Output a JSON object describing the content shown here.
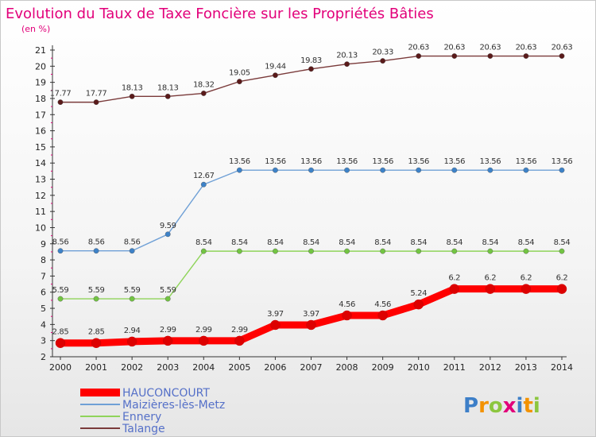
{
  "chart_data": {
    "type": "line",
    "title": "Evolution du Taux de Taxe Foncière sur les Propriétés Bâties",
    "ylabel": "(en %)",
    "xlabel": "",
    "x": [
      2000,
      2001,
      2002,
      2003,
      2004,
      2005,
      2006,
      2007,
      2008,
      2009,
      2010,
      2011,
      2012,
      2013,
      2014
    ],
    "ylim": [
      2,
      21
    ],
    "yticks": [
      2,
      3,
      4,
      5,
      6,
      7,
      8,
      9,
      10,
      11,
      12,
      13,
      14,
      15,
      16,
      17,
      18,
      19,
      20,
      21
    ],
    "grid": false,
    "legend_position": "bottom-left",
    "series": [
      {
        "name": "HAUCONCOURT",
        "color": "#ff0000",
        "marker_color": "#dd0000",
        "labels": [
          "2.85",
          "2.85",
          "2.94",
          "2.99",
          "2.99",
          "2.99",
          "3.97",
          "3.97",
          "4.56",
          "4.56",
          "5.24",
          "6.2",
          "6.2",
          "6.2",
          "6.2"
        ],
        "values": [
          2.85,
          2.85,
          2.94,
          2.99,
          2.99,
          2.99,
          3.97,
          3.97,
          4.56,
          4.56,
          5.24,
          6.2,
          6.2,
          6.2,
          6.2
        ]
      },
      {
        "name": "Maizières-lès-Metz",
        "color": "#6fa0d6",
        "marker_color": "#3d82c8",
        "labels": [
          "8.56",
          "8.56",
          "8.56",
          "9.59",
          "12.67",
          "13.56",
          "13.56",
          "13.56",
          "13.56",
          "13.56",
          "13.56",
          "13.56",
          "13.56",
          "13.56",
          "13.56"
        ],
        "values": [
          8.56,
          8.56,
          8.56,
          9.59,
          12.67,
          13.56,
          13.56,
          13.56,
          13.56,
          13.56,
          13.56,
          13.56,
          13.56,
          13.56,
          13.56
        ]
      },
      {
        "name": "Ennery",
        "color": "#8fd45a",
        "marker_color": "#72c442",
        "labels": [
          "5.59",
          "5.59",
          "5.59",
          "5.59",
          "8.54",
          "8.54",
          "8.54",
          "8.54",
          "8.54",
          "8.54",
          "8.54",
          "8.54",
          "8.54",
          "8.54",
          "8.54"
        ],
        "values": [
          5.59,
          5.59,
          5.59,
          5.59,
          8.54,
          8.54,
          8.54,
          8.54,
          8.54,
          8.54,
          8.54,
          8.54,
          8.54,
          8.54,
          8.54
        ]
      },
      {
        "name": "Talange",
        "color": "#7a3a3a",
        "marker_color": "#5a1a1a",
        "labels": [
          "17.77",
          "17.77",
          "18.13",
          "18.13",
          "18.32",
          "19.05",
          "19.44",
          "19.83",
          "20.13",
          "20.33",
          "20.63",
          "20.63",
          "20.63",
          "20.63",
          "20.63"
        ],
        "values": [
          17.77,
          17.77,
          18.13,
          18.13,
          18.32,
          19.05,
          19.44,
          19.83,
          20.13,
          20.33,
          20.63,
          20.63,
          20.63,
          20.63,
          20.63
        ]
      }
    ]
  },
  "brand": {
    "letters": [
      "P",
      "r",
      "o",
      "x",
      "i",
      "t",
      "i"
    ],
    "colors": [
      "#3d7fc8",
      "#f39200",
      "#8cc63f",
      "#e2007a",
      "#3d7fc8",
      "#f39200",
      "#8cc63f"
    ]
  },
  "colors": {
    "title": "#e2007a",
    "axis": "#222222",
    "legend_text": "#5570c8"
  }
}
